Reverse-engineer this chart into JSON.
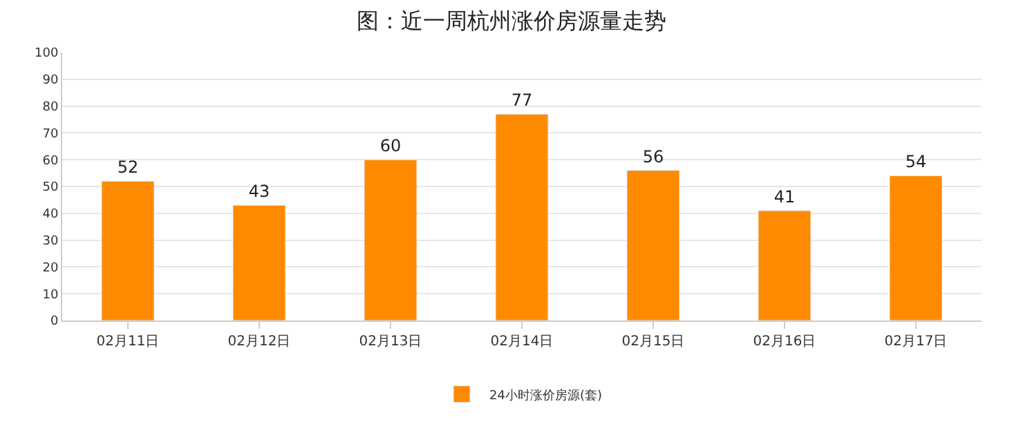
{
  "chart_data": {
    "type": "bar",
    "title": "图：近一周杭州涨价房源量走势",
    "categories": [
      "02月11日",
      "02月12日",
      "02月13日",
      "02月14日",
      "02月15日",
      "02月16日",
      "02月17日"
    ],
    "series": [
      {
        "name": "24小时涨价房源(套)",
        "color": "#ff8a00",
        "values": [
          52,
          43,
          60,
          77,
          56,
          41,
          54
        ]
      }
    ],
    "ylim": [
      0,
      100
    ],
    "yticks": [
      0,
      10,
      20,
      30,
      40,
      50,
      60,
      70,
      80,
      90,
      100
    ],
    "grid": "y",
    "legend": "bottom",
    "data_labels": true
  }
}
